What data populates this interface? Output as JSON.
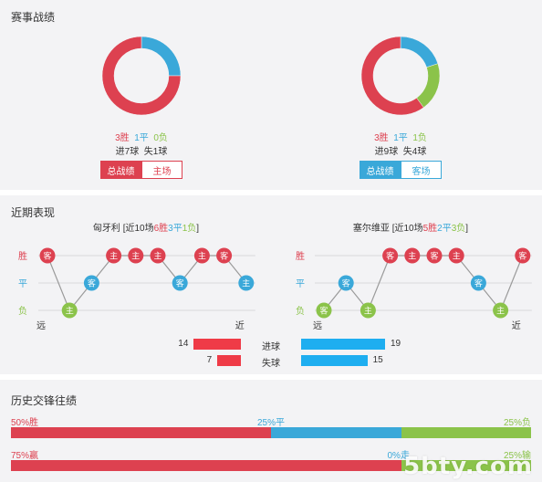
{
  "record": {
    "title": "赛事战绩",
    "left": {
      "wins": 3,
      "draws": 1,
      "losses": 0,
      "win_text": "3胜",
      "draw_text": "1平",
      "loss_text": "0负",
      "goals_text": "进7球",
      "conceded_text": "失1球",
      "tab_active": "总战绩",
      "tab_inactive": "主场"
    },
    "right": {
      "wins": 3,
      "draws": 1,
      "losses": 1,
      "win_text": "3胜",
      "draw_text": "1平",
      "loss_text": "1负",
      "goals_text": "进9球",
      "conceded_text": "失4球",
      "tab_active": "总战绩",
      "tab_inactive": "客场"
    }
  },
  "recent": {
    "title": "近期表现",
    "row_labels": {
      "win": "胜",
      "draw": "平",
      "loss": "负"
    },
    "far": "远",
    "near": "近",
    "left_team": {
      "name": "匈牙利",
      "prefix": " [近10场",
      "w": "6胜",
      "d": "3平",
      "l": "1负",
      "suffix": "]",
      "results": [
        "win",
        "loss",
        "draw",
        "win",
        "win",
        "win",
        "draw",
        "win",
        "win",
        "draw"
      ],
      "venues": [
        "客",
        "主",
        "客",
        "主",
        "主",
        "主",
        "客",
        "主",
        "客",
        "主"
      ]
    },
    "right_team": {
      "name": "塞尔维亚",
      "prefix": " [近10场",
      "w": "5胜",
      "d": "2平",
      "l": "3负",
      "suffix": "]",
      "results": [
        "loss",
        "draw",
        "loss",
        "win",
        "win",
        "win",
        "win",
        "draw",
        "loss",
        "win"
      ],
      "venues": [
        "客",
        "客",
        "主",
        "客",
        "主",
        "客",
        "主",
        "客",
        "主",
        "客"
      ]
    },
    "goals_label": "进球",
    "conceded_label": "失球",
    "left_goals": 14,
    "left_conceded": 7,
    "right_goals": 19,
    "right_conceded": 15
  },
  "history": {
    "title": "历史交锋往绩",
    "row1": {
      "win_label": "50%胜",
      "draw_label": "25%平",
      "loss_label": "25%负",
      "win": 50,
      "draw": 25,
      "loss": 25
    },
    "row2": {
      "win_label": "75%赢",
      "draw_label": "0%走",
      "loss_label": "25%输",
      "win": 75,
      "draw": 0,
      "loss": 25
    },
    "watermark": "5bty.com"
  },
  "colors": {
    "win": "#dd4150",
    "draw": "#3aa8d9",
    "loss": "#8bc34a"
  }
}
